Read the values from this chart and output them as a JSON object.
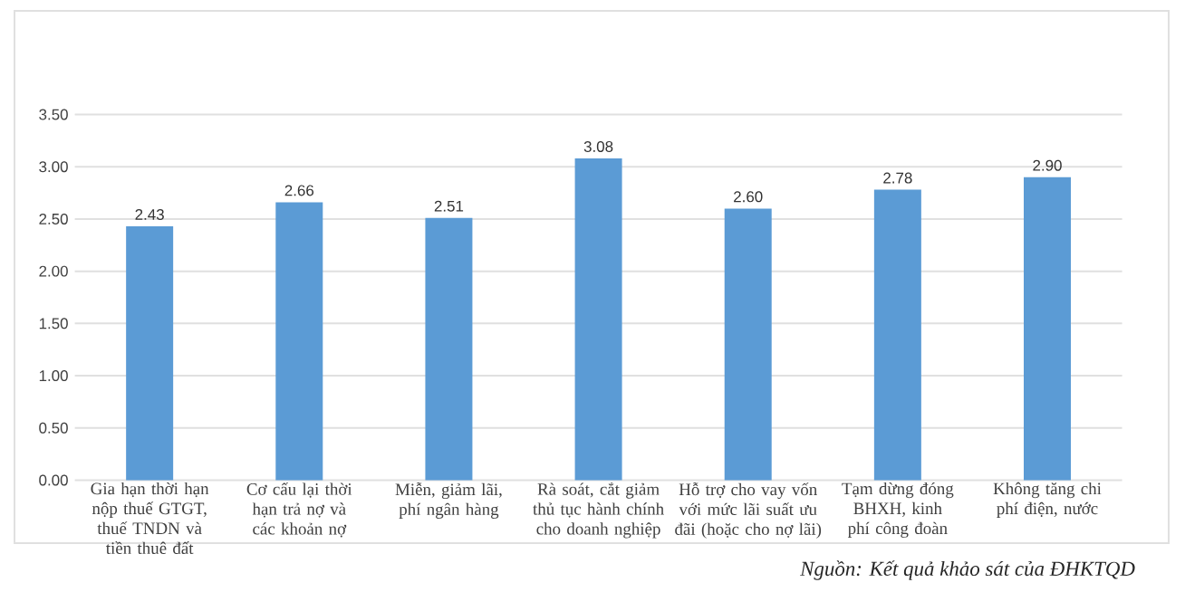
{
  "chart_data": {
    "type": "bar",
    "categories": [
      "Gia hạn thời hạn nộp thuế GTGT, thuế TNDN và tiền thuê đất",
      "Cơ cấu lại thời hạn trả nợ và các khoản nợ",
      "Miễn, giảm lãi, phí ngân hàng",
      "Rà soát, cắt giảm thủ tục hành chính cho doanh nghiệp",
      "Hỗ trợ cho vay vốn với mức lãi suất ưu đãi (hoặc cho nợ lãi)",
      "Tạm dừng đóng BHXH, kinh phí công đoàn",
      "Không tăng chi phí điện, nước"
    ],
    "values": [
      2.43,
      2.66,
      2.51,
      3.08,
      2.6,
      2.78,
      2.9
    ],
    "value_labels": [
      "2.43",
      "2.66",
      "2.51",
      "3.08",
      "2.60",
      "2.78",
      "2.90"
    ],
    "color": "#5b9bd5",
    "ylim": [
      0,
      3.5
    ],
    "yticks": [
      {
        "value": 0,
        "label": "0.00"
      },
      {
        "value": 0.5,
        "label": "0.50"
      },
      {
        "value": 1,
        "label": "1.00"
      },
      {
        "value": 1.5,
        "label": "1.50"
      },
      {
        "value": 2,
        "label": "2.00"
      },
      {
        "value": 2.5,
        "label": "2.50"
      },
      {
        "value": 3,
        "label": "3.00"
      },
      {
        "value": 3.5,
        "label": "3.50"
      }
    ],
    "grid": "y",
    "annotations": [
      "Nguồn: Kết quả khảo sát của ĐHKTQD"
    ]
  }
}
